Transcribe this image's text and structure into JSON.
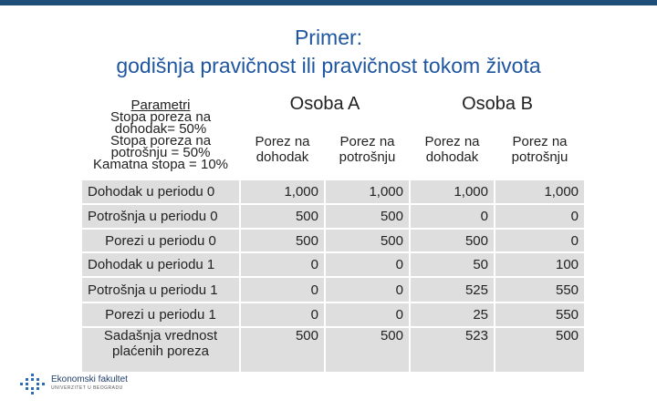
{
  "header": {
    "title_line1": "Primer:",
    "title_line2": "godišnja pravičnost ili pravičnost tokom života"
  },
  "table": {
    "parameters": {
      "heading": "Parametri",
      "lines": [
        "Stopa poreza na dohodak= 50%",
        "Stopa poreza na potrošnju = 50%",
        "Kamatna stopa = 10%"
      ]
    },
    "groups": [
      "Osoba A",
      "Osoba B"
    ],
    "columns": [
      "Porez na dohodak",
      "Porez na potrošnju",
      "Porez na dohodak",
      "Porez na potrošnju"
    ],
    "rows": [
      [
        "Dohodak u periodu  0",
        "1,000",
        "1,000",
        "1,000",
        "1,000"
      ],
      [
        "Potrošnja u periodu 0",
        "500",
        "500",
        "0",
        "0"
      ],
      [
        "Porezi u periodu 0",
        "500",
        "500",
        "500",
        "0"
      ],
      [
        "Dohodak u periodu 1",
        "0",
        "0",
        "50",
        "100"
      ],
      [
        "Potrošnja u periodu 1",
        "0",
        "0",
        "525",
        "550"
      ],
      [
        "Porezi u periodu 1",
        "0",
        "0",
        "25",
        "550"
      ],
      [
        "Sadašnja vrednost plaćenih poreza",
        "500",
        "500",
        "523",
        "500"
      ]
    ]
  },
  "logo": {
    "name": "Ekonomski fakultet",
    "subtitle": "UNIVERZITET U BEOGRADU"
  }
}
